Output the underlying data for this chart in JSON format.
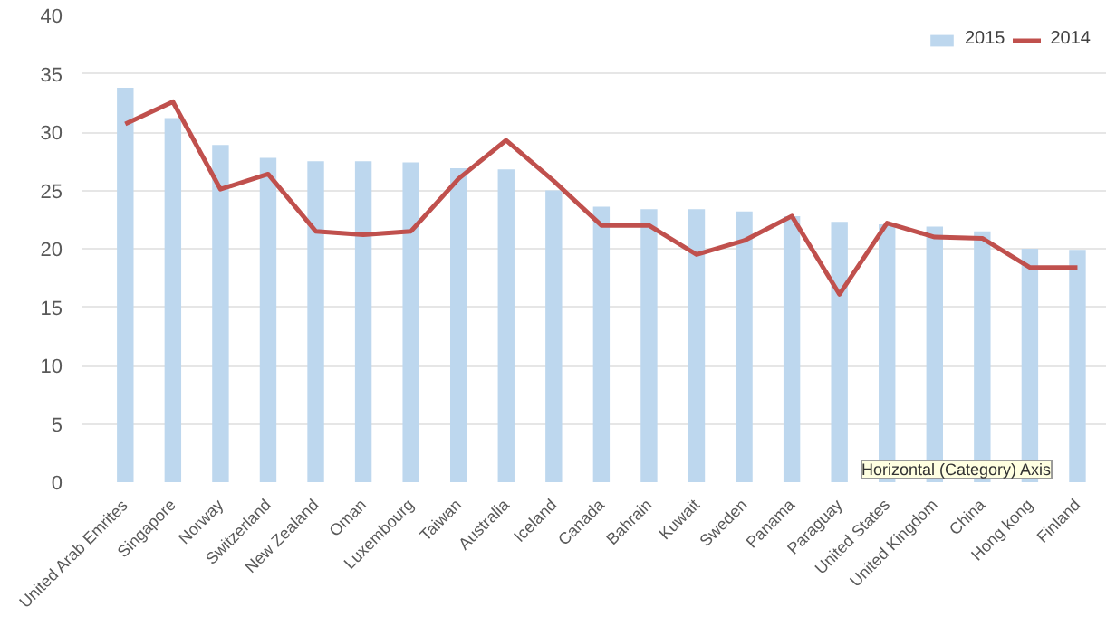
{
  "chart_data": {
    "type": "bar",
    "categories": [
      "United Arab Emrites",
      "Singapore",
      "Norway",
      "Switzerland",
      "New Zealand",
      "Oman",
      "Luxembourg",
      "Taiwan",
      "Australia",
      "Iceland",
      "Canada",
      "Bahrain",
      "Kuwait",
      "Sweden",
      "Panama",
      "Paraguay",
      "United States",
      "United Kingdom",
      "China",
      "Hong kong",
      "Finland"
    ],
    "series": [
      {
        "name": "2015",
        "color": "#bdd7ee",
        "values": [
          33.8,
          31.2,
          28.9,
          27.8,
          27.5,
          27.5,
          27.4,
          26.9,
          26.8,
          25.0,
          23.6,
          23.4,
          23.4,
          23.2,
          22.8,
          22.3,
          22.1,
          21.9,
          21.5,
          20.0,
          19.9
        ]
      },
      {
        "name": "2014",
        "type": "line",
        "color": "#c0504d",
        "values": [
          30.7,
          32.6,
          25.1,
          26.4,
          21.5,
          21.2,
          21.5,
          26.0,
          29.3,
          25.8,
          22.0,
          22.0,
          19.5,
          20.7,
          22.8,
          16.1,
          22.2,
          21.0,
          20.9,
          18.4,
          18.4
        ]
      }
    ],
    "ylim": [
      0,
      40
    ],
    "yticks": [
      0,
      5,
      10,
      15,
      20,
      25,
      30,
      35,
      40
    ],
    "grid": "y",
    "legend": "top right",
    "annotations": [
      "Horizontal (Category) Axis"
    ]
  }
}
